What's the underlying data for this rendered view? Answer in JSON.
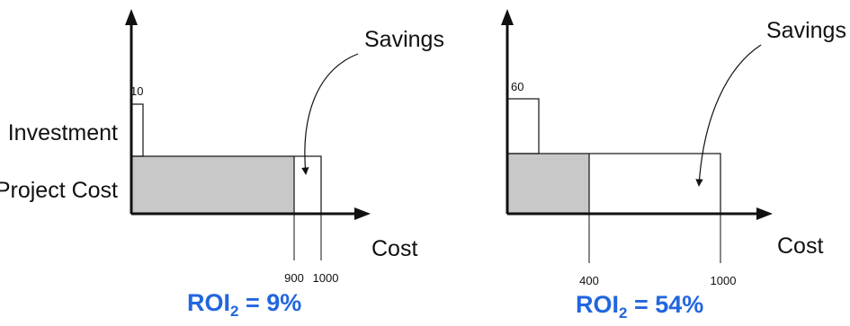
{
  "axis_labels": {
    "investment": "Investment",
    "project_cost": "Project Cost"
  },
  "panels": [
    {
      "investment_value": "10",
      "savings_label": "Savings",
      "x_axis_label": "Cost",
      "tick_shaded_end": "900",
      "tick_total": "1000",
      "roi_main": "ROI",
      "roi_sub": "2",
      "roi_value": " = 9%"
    },
    {
      "investment_value": "60",
      "savings_label": "Savings",
      "x_axis_label": "Cost",
      "tick_shaded_end": "400",
      "tick_total": "1000",
      "roi_main": "ROI",
      "roi_sub": "2",
      "roi_value": " = 54%"
    }
  ],
  "colors": {
    "shaded": "#c8c8c8",
    "stroke": "#111111",
    "roi_text": "#2266dd"
  }
}
